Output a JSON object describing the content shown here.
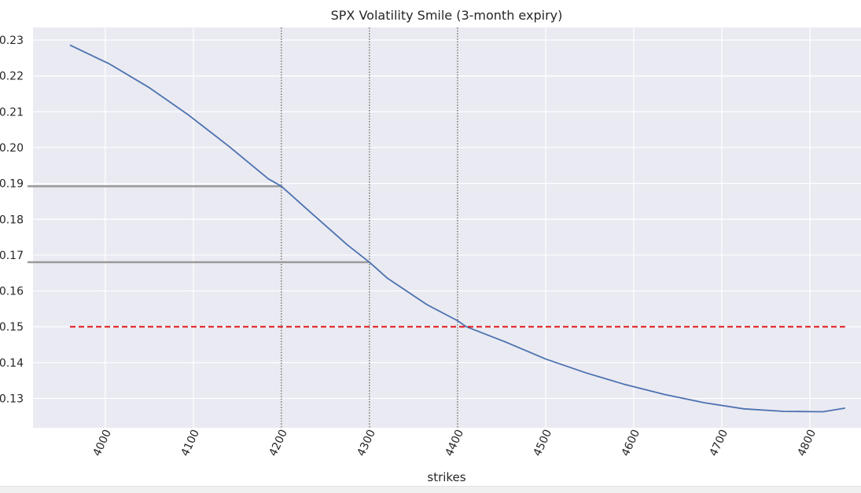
{
  "chart_data": {
    "type": "line",
    "title": "SPX Volatility Smile (3-month expiry)",
    "xlabel": "strikes",
    "ylabel": "",
    "xlim": [
      3918,
      4858
    ],
    "ylim": [
      0.1218,
      0.2335
    ],
    "x_ticks": [
      4000,
      4100,
      4200,
      4300,
      4400,
      4500,
      4600,
      4700,
      4800
    ],
    "x_tick_labels": [
      "4000",
      "4100",
      "4200",
      "4300",
      "4400",
      "4500",
      "4600",
      "4700",
      "4800"
    ],
    "y_ticks": [
      0.13,
      0.14,
      0.15,
      0.16,
      0.17,
      0.18,
      0.19,
      0.2,
      0.21,
      0.22,
      0.23
    ],
    "y_tick_labels": [
      "0.13",
      "0.14",
      "0.15",
      "0.16",
      "0.17",
      "0.18",
      "0.19",
      "0.20",
      "0.21",
      "0.22",
      "0.23"
    ],
    "grid": true,
    "series": [
      {
        "color": "#4c72b0",
        "style": "solid",
        "x": [
          3960,
          4005,
          4050,
          4095,
          4140,
          4185,
          4200,
          4230,
          4275,
          4300,
          4320,
          4365,
          4400,
          4410,
          4455,
          4500,
          4545,
          4590,
          4635,
          4680,
          4725,
          4770,
          4815,
          4840
        ],
        "y": [
          0.2286,
          0.2233,
          0.2167,
          0.209,
          0.2004,
          0.1913,
          0.1892,
          0.1826,
          0.1728,
          0.168,
          0.1636,
          0.1562,
          0.1517,
          0.15,
          0.1457,
          0.141,
          0.1372,
          0.1339,
          0.1311,
          0.1288,
          0.1271,
          0.1264,
          0.1263,
          0.1273
        ]
      },
      {
        "color": "#e11b1b",
        "style": "dashed",
        "x": [
          3960,
          4840
        ],
        "y": [
          0.15,
          0.15
        ]
      }
    ],
    "annotations": {
      "strike_lines": [
        4200,
        4300,
        4400
      ],
      "level_lines": [
        {
          "y": 0.1892,
          "x_end": 4200,
          "color": "#9a9a9a"
        },
        {
          "y": 0.168,
          "x_end": 4300,
          "color": "#9a9a9a"
        }
      ]
    },
    "colors": {
      "plot_background": "#eaeaf2",
      "grid": "#ffffff",
      "text": "#262626"
    }
  }
}
